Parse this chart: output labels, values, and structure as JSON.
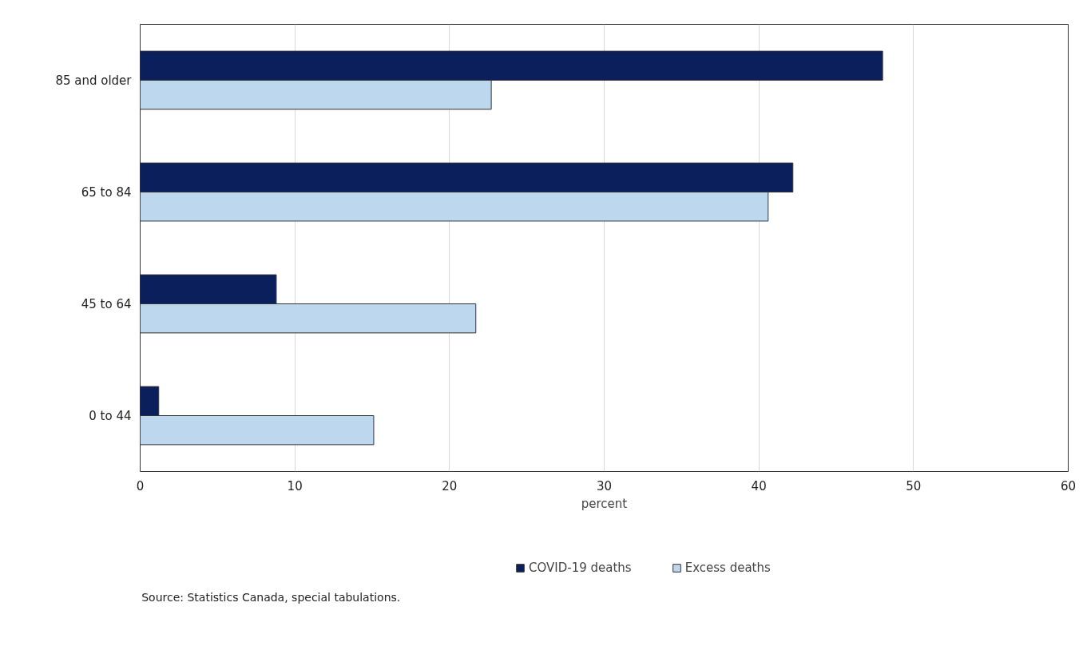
{
  "chart_data": {
    "type": "bar",
    "orientation": "horizontal",
    "xlabel": "percent",
    "categories": [
      "85 and older",
      "65 to 84",
      "45 to 64",
      "0 to 44"
    ],
    "series": [
      {
        "name": "COVID-19 deaths",
        "color": "#0a1f5c",
        "values": [
          48.0,
          42.2,
          8.8,
          1.2
        ]
      },
      {
        "name": "Excess deaths",
        "color": "#bdd7ee",
        "values": [
          22.7,
          40.6,
          21.7,
          15.1
        ]
      }
    ],
    "xlim": [
      0,
      60
    ],
    "xticks": [
      0,
      10,
      20,
      30,
      40,
      50,
      60
    ],
    "grid": "x",
    "legend": "bottom",
    "annotations": [
      "Source: Statistics Canada, special tabulations."
    ]
  }
}
